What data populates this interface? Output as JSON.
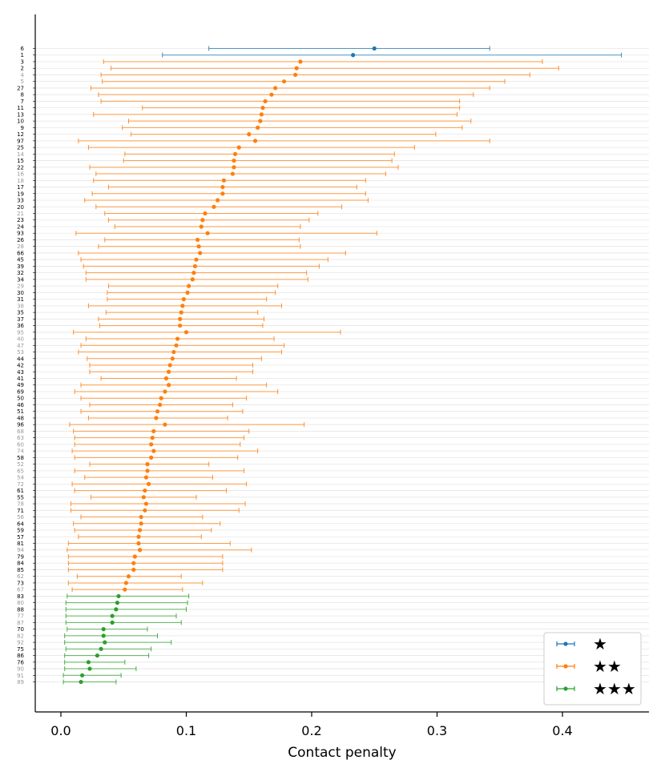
{
  "chart_data": {
    "type": "errorbar",
    "xlabel": "Contact penalty",
    "xlim": [
      -0.02,
      0.468
    ],
    "xticks": [
      0.0,
      0.1,
      0.2,
      0.3,
      0.4
    ],
    "xtick_labels": [
      "0.0",
      "0.1",
      "0.2",
      "0.3",
      "0.4"
    ],
    "legend": {
      "placement": "bottom-right",
      "entries": [
        {
          "label": "★",
          "group": 1
        },
        {
          "label": "★★",
          "group": 2
        },
        {
          "label": "★★★",
          "group": 3
        }
      ]
    },
    "colors": {
      "1": "#1f77b4",
      "2": "#ff7f0e",
      "3": "#2ca02c",
      "label_bold": "#000000",
      "label_faded": "#999999"
    },
    "points": [
      {
        "label": "6",
        "value": 0.25,
        "low": 0.118,
        "high": 0.342,
        "group": 1,
        "bold": true
      },
      {
        "label": "1",
        "value": 0.233,
        "low": 0.081,
        "high": 0.447,
        "group": 1,
        "bold": true
      },
      {
        "label": "3",
        "value": 0.191,
        "low": 0.034,
        "high": 0.384,
        "group": 2,
        "bold": true
      },
      {
        "label": "2",
        "value": 0.188,
        "low": 0.04,
        "high": 0.397,
        "group": 2,
        "bold": true
      },
      {
        "label": "4",
        "value": 0.187,
        "low": 0.032,
        "high": 0.374,
        "group": 2,
        "bold": false
      },
      {
        "label": "5",
        "value": 0.178,
        "low": 0.033,
        "high": 0.354,
        "group": 2,
        "bold": false
      },
      {
        "label": "27",
        "value": 0.171,
        "low": 0.024,
        "high": 0.342,
        "group": 2,
        "bold": true
      },
      {
        "label": "8",
        "value": 0.168,
        "low": 0.03,
        "high": 0.329,
        "group": 2,
        "bold": true
      },
      {
        "label": "7",
        "value": 0.163,
        "low": 0.032,
        "high": 0.318,
        "group": 2,
        "bold": true
      },
      {
        "label": "11",
        "value": 0.161,
        "low": 0.065,
        "high": 0.318,
        "group": 2,
        "bold": true
      },
      {
        "label": "13",
        "value": 0.16,
        "low": 0.026,
        "high": 0.316,
        "group": 2,
        "bold": true
      },
      {
        "label": "10",
        "value": 0.159,
        "low": 0.054,
        "high": 0.327,
        "group": 2,
        "bold": true
      },
      {
        "label": "9",
        "value": 0.157,
        "low": 0.049,
        "high": 0.32,
        "group": 2,
        "bold": true
      },
      {
        "label": "12",
        "value": 0.15,
        "low": 0.056,
        "high": 0.299,
        "group": 2,
        "bold": true
      },
      {
        "label": "97",
        "value": 0.155,
        "low": 0.014,
        "high": 0.342,
        "group": 2,
        "bold": true
      },
      {
        "label": "25",
        "value": 0.142,
        "low": 0.022,
        "high": 0.282,
        "group": 2,
        "bold": true
      },
      {
        "label": "14",
        "value": 0.139,
        "low": 0.051,
        "high": 0.266,
        "group": 2,
        "bold": false
      },
      {
        "label": "15",
        "value": 0.138,
        "low": 0.05,
        "high": 0.264,
        "group": 2,
        "bold": true
      },
      {
        "label": "22",
        "value": 0.138,
        "low": 0.023,
        "high": 0.269,
        "group": 2,
        "bold": true
      },
      {
        "label": "16",
        "value": 0.137,
        "low": 0.028,
        "high": 0.259,
        "group": 2,
        "bold": false
      },
      {
        "label": "18",
        "value": 0.13,
        "low": 0.026,
        "high": 0.243,
        "group": 2,
        "bold": false
      },
      {
        "label": "17",
        "value": 0.129,
        "low": 0.038,
        "high": 0.236,
        "group": 2,
        "bold": true
      },
      {
        "label": "19",
        "value": 0.129,
        "low": 0.025,
        "high": 0.243,
        "group": 2,
        "bold": true
      },
      {
        "label": "33",
        "value": 0.125,
        "low": 0.019,
        "high": 0.245,
        "group": 2,
        "bold": true
      },
      {
        "label": "20",
        "value": 0.122,
        "low": 0.028,
        "high": 0.224,
        "group": 2,
        "bold": true
      },
      {
        "label": "21",
        "value": 0.115,
        "low": 0.035,
        "high": 0.205,
        "group": 2,
        "bold": false
      },
      {
        "label": "23",
        "value": 0.113,
        "low": 0.038,
        "high": 0.198,
        "group": 2,
        "bold": true
      },
      {
        "label": "24",
        "value": 0.112,
        "low": 0.043,
        "high": 0.191,
        "group": 2,
        "bold": true
      },
      {
        "label": "93",
        "value": 0.117,
        "low": 0.012,
        "high": 0.252,
        "group": 2,
        "bold": true
      },
      {
        "label": "26",
        "value": 0.109,
        "low": 0.035,
        "high": 0.19,
        "group": 2,
        "bold": true
      },
      {
        "label": "28",
        "value": 0.11,
        "low": 0.03,
        "high": 0.191,
        "group": 2,
        "bold": false
      },
      {
        "label": "66",
        "value": 0.111,
        "low": 0.014,
        "high": 0.227,
        "group": 2,
        "bold": true
      },
      {
        "label": "45",
        "value": 0.108,
        "low": 0.016,
        "high": 0.213,
        "group": 2,
        "bold": true
      },
      {
        "label": "39",
        "value": 0.107,
        "low": 0.018,
        "high": 0.206,
        "group": 2,
        "bold": true
      },
      {
        "label": "32",
        "value": 0.106,
        "low": 0.02,
        "high": 0.196,
        "group": 2,
        "bold": true
      },
      {
        "label": "34",
        "value": 0.105,
        "low": 0.02,
        "high": 0.197,
        "group": 2,
        "bold": true
      },
      {
        "label": "29",
        "value": 0.102,
        "low": 0.038,
        "high": 0.173,
        "group": 2,
        "bold": false
      },
      {
        "label": "30",
        "value": 0.101,
        "low": 0.037,
        "high": 0.171,
        "group": 2,
        "bold": true
      },
      {
        "label": "31",
        "value": 0.098,
        "low": 0.037,
        "high": 0.164,
        "group": 2,
        "bold": true
      },
      {
        "label": "38",
        "value": 0.097,
        "low": 0.022,
        "high": 0.176,
        "group": 2,
        "bold": false
      },
      {
        "label": "35",
        "value": 0.096,
        "low": 0.036,
        "high": 0.157,
        "group": 2,
        "bold": true
      },
      {
        "label": "37",
        "value": 0.095,
        "low": 0.03,
        "high": 0.162,
        "group": 2,
        "bold": true
      },
      {
        "label": "36",
        "value": 0.095,
        "low": 0.031,
        "high": 0.161,
        "group": 2,
        "bold": true
      },
      {
        "label": "95",
        "value": 0.1,
        "low": 0.01,
        "high": 0.223,
        "group": 2,
        "bold": false
      },
      {
        "label": "40",
        "value": 0.093,
        "low": 0.02,
        "high": 0.17,
        "group": 2,
        "bold": false
      },
      {
        "label": "47",
        "value": 0.092,
        "low": 0.016,
        "high": 0.178,
        "group": 2,
        "bold": false
      },
      {
        "label": "53",
        "value": 0.09,
        "low": 0.014,
        "high": 0.176,
        "group": 2,
        "bold": false
      },
      {
        "label": "44",
        "value": 0.089,
        "low": 0.021,
        "high": 0.16,
        "group": 2,
        "bold": true
      },
      {
        "label": "42",
        "value": 0.087,
        "low": 0.023,
        "high": 0.153,
        "group": 2,
        "bold": true
      },
      {
        "label": "43",
        "value": 0.086,
        "low": 0.023,
        "high": 0.153,
        "group": 2,
        "bold": true
      },
      {
        "label": "41",
        "value": 0.084,
        "low": 0.032,
        "high": 0.14,
        "group": 2,
        "bold": true
      },
      {
        "label": "49",
        "value": 0.086,
        "low": 0.016,
        "high": 0.164,
        "group": 2,
        "bold": true
      },
      {
        "label": "69",
        "value": 0.083,
        "low": 0.011,
        "high": 0.173,
        "group": 2,
        "bold": true
      },
      {
        "label": "50",
        "value": 0.08,
        "low": 0.016,
        "high": 0.148,
        "group": 2,
        "bold": true
      },
      {
        "label": "46",
        "value": 0.079,
        "low": 0.023,
        "high": 0.137,
        "group": 2,
        "bold": true
      },
      {
        "label": "51",
        "value": 0.077,
        "low": 0.016,
        "high": 0.145,
        "group": 2,
        "bold": true
      },
      {
        "label": "48",
        "value": 0.076,
        "low": 0.022,
        "high": 0.133,
        "group": 2,
        "bold": true
      },
      {
        "label": "96",
        "value": 0.083,
        "low": 0.007,
        "high": 0.194,
        "group": 2,
        "bold": true
      },
      {
        "label": "68",
        "value": 0.074,
        "low": 0.01,
        "high": 0.15,
        "group": 2,
        "bold": false
      },
      {
        "label": "63",
        "value": 0.073,
        "low": 0.011,
        "high": 0.146,
        "group": 2,
        "bold": false
      },
      {
        "label": "60",
        "value": 0.072,
        "low": 0.011,
        "high": 0.143,
        "group": 2,
        "bold": false
      },
      {
        "label": "74",
        "value": 0.074,
        "low": 0.009,
        "high": 0.157,
        "group": 2,
        "bold": false
      },
      {
        "label": "58",
        "value": 0.072,
        "low": 0.011,
        "high": 0.141,
        "group": 2,
        "bold": true
      },
      {
        "label": "52",
        "value": 0.069,
        "low": 0.023,
        "high": 0.118,
        "group": 2,
        "bold": false
      },
      {
        "label": "65",
        "value": 0.069,
        "low": 0.011,
        "high": 0.146,
        "group": 2,
        "bold": false
      },
      {
        "label": "54",
        "value": 0.068,
        "low": 0.019,
        "high": 0.121,
        "group": 2,
        "bold": false
      },
      {
        "label": "72",
        "value": 0.07,
        "low": 0.009,
        "high": 0.148,
        "group": 2,
        "bold": false
      },
      {
        "label": "61",
        "value": 0.067,
        "low": 0.011,
        "high": 0.132,
        "group": 2,
        "bold": true
      },
      {
        "label": "55",
        "value": 0.066,
        "low": 0.024,
        "high": 0.108,
        "group": 2,
        "bold": true
      },
      {
        "label": "78",
        "value": 0.068,
        "low": 0.008,
        "high": 0.147,
        "group": 2,
        "bold": false
      },
      {
        "label": "71",
        "value": 0.067,
        "low": 0.008,
        "high": 0.142,
        "group": 2,
        "bold": true
      },
      {
        "label": "56",
        "value": 0.064,
        "low": 0.016,
        "high": 0.113,
        "group": 2,
        "bold": false
      },
      {
        "label": "64",
        "value": 0.064,
        "low": 0.01,
        "high": 0.127,
        "group": 2,
        "bold": true
      },
      {
        "label": "59",
        "value": 0.063,
        "low": 0.011,
        "high": 0.12,
        "group": 2,
        "bold": true
      },
      {
        "label": "57",
        "value": 0.062,
        "low": 0.014,
        "high": 0.112,
        "group": 2,
        "bold": true
      },
      {
        "label": "81",
        "value": 0.062,
        "low": 0.006,
        "high": 0.135,
        "group": 2,
        "bold": true
      },
      {
        "label": "94",
        "value": 0.063,
        "low": 0.005,
        "high": 0.152,
        "group": 2,
        "bold": false
      },
      {
        "label": "79",
        "value": 0.059,
        "low": 0.006,
        "high": 0.129,
        "group": 2,
        "bold": true
      },
      {
        "label": "84",
        "value": 0.058,
        "low": 0.006,
        "high": 0.129,
        "group": 2,
        "bold": true
      },
      {
        "label": "85",
        "value": 0.058,
        "low": 0.006,
        "high": 0.129,
        "group": 2,
        "bold": true
      },
      {
        "label": "62",
        "value": 0.054,
        "low": 0.013,
        "high": 0.096,
        "group": 2,
        "bold": false
      },
      {
        "label": "73",
        "value": 0.052,
        "low": 0.006,
        "high": 0.113,
        "group": 2,
        "bold": true
      },
      {
        "label": "67",
        "value": 0.051,
        "low": 0.009,
        "high": 0.097,
        "group": 2,
        "bold": false
      },
      {
        "label": "83",
        "value": 0.046,
        "low": 0.005,
        "high": 0.102,
        "group": 3,
        "bold": true
      },
      {
        "label": "80",
        "value": 0.045,
        "low": 0.004,
        "high": 0.101,
        "group": 3,
        "bold": false
      },
      {
        "label": "88",
        "value": 0.044,
        "low": 0.004,
        "high": 0.1,
        "group": 3,
        "bold": true
      },
      {
        "label": "77",
        "value": 0.041,
        "low": 0.004,
        "high": 0.092,
        "group": 3,
        "bold": false
      },
      {
        "label": "87",
        "value": 0.041,
        "low": 0.004,
        "high": 0.096,
        "group": 3,
        "bold": false
      },
      {
        "label": "70",
        "value": 0.034,
        "low": 0.005,
        "high": 0.069,
        "group": 3,
        "bold": true
      },
      {
        "label": "82",
        "value": 0.034,
        "low": 0.003,
        "high": 0.077,
        "group": 3,
        "bold": false
      },
      {
        "label": "92",
        "value": 0.035,
        "low": 0.003,
        "high": 0.088,
        "group": 3,
        "bold": false
      },
      {
        "label": "75",
        "value": 0.032,
        "low": 0.004,
        "high": 0.072,
        "group": 3,
        "bold": true
      },
      {
        "label": "86",
        "value": 0.029,
        "low": 0.003,
        "high": 0.07,
        "group": 3,
        "bold": true
      },
      {
        "label": "76",
        "value": 0.022,
        "low": 0.003,
        "high": 0.051,
        "group": 3,
        "bold": true
      },
      {
        "label": "90",
        "value": 0.023,
        "low": 0.003,
        "high": 0.06,
        "group": 3,
        "bold": false
      },
      {
        "label": "91",
        "value": 0.017,
        "low": 0.002,
        "high": 0.048,
        "group": 3,
        "bold": false
      },
      {
        "label": "89",
        "value": 0.016,
        "low": 0.002,
        "high": 0.044,
        "group": 3,
        "bold": false
      }
    ]
  }
}
